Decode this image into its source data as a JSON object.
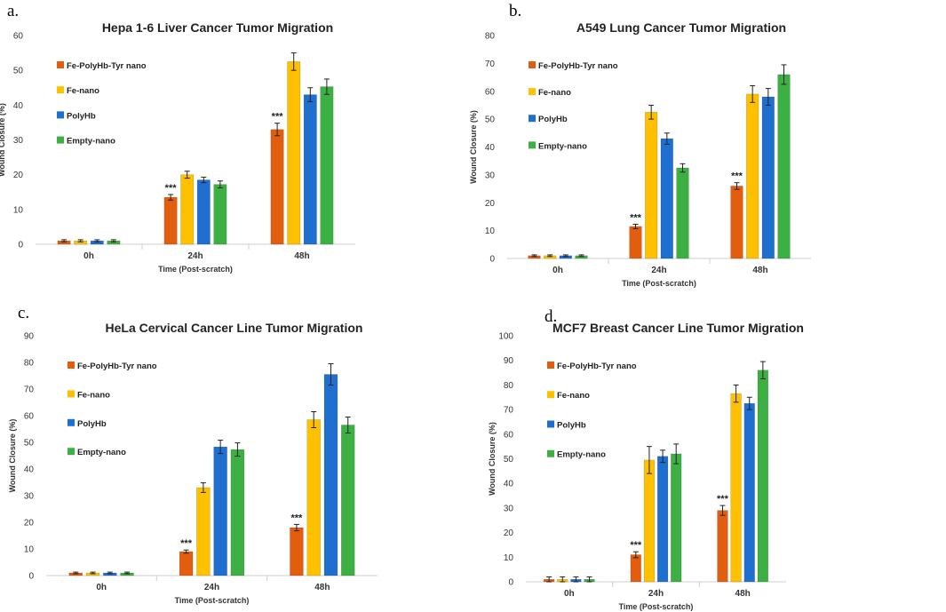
{
  "chart_data": [
    {
      "type": "bar",
      "panel_label": "a.",
      "title": "Hepa 1-6 Liver Cancer Tumor Migration",
      "xlabel": "Time (Post-scratch)",
      "ylabel": "Wound Closure (%)",
      "ylim": [
        0,
        60
      ],
      "ytick_step": 10,
      "categories": [
        "0h",
        "24h",
        "48h"
      ],
      "series": [
        {
          "name": "Fe-PolyHb-Tyr nano",
          "color": "#E35D0E",
          "values": [
            1,
            13.5,
            33
          ],
          "errors": [
            0.3,
            0.8,
            1.8
          ]
        },
        {
          "name": "Fe-nano",
          "color": "#FFC000",
          "values": [
            1,
            20,
            52.5
          ],
          "errors": [
            0.3,
            1,
            2.5
          ]
        },
        {
          "name": "PolyHb",
          "color": "#1E6FD0",
          "values": [
            1,
            18.5,
            43
          ],
          "errors": [
            0.3,
            0.8,
            2
          ]
        },
        {
          "name": "Empty-nano",
          "color": "#3CB043",
          "values": [
            1,
            17.2,
            45.3
          ],
          "errors": [
            0.3,
            1,
            2.2
          ]
        }
      ],
      "annotations": [
        {
          "text": "***",
          "category": "24h",
          "series": "Fe-PolyHb-Tyr nano"
        },
        {
          "text": "***",
          "category": "48h",
          "series": "Fe-PolyHb-Tyr nano"
        }
      ],
      "legend_position": "top-left"
    },
    {
      "type": "bar",
      "panel_label": "b.",
      "title": "A549 Lung Cancer Tumor Migration",
      "xlabel": "Time (Post-scratch)",
      "ylabel": "Wound Closure (%)",
      "ylim": [
        0,
        80
      ],
      "ytick_step": 10,
      "categories": [
        "0h",
        "24h",
        "48h"
      ],
      "series": [
        {
          "name": "Fe-PolyHb-Tyr nano",
          "color": "#E35D0E",
          "values": [
            1,
            11.5,
            26
          ],
          "errors": [
            0.3,
            0.8,
            1.2
          ]
        },
        {
          "name": "Fe-nano",
          "color": "#FFC000",
          "values": [
            1,
            52.5,
            59
          ],
          "errors": [
            0.3,
            2.5,
            3
          ]
        },
        {
          "name": "PolyHb",
          "color": "#1E6FD0",
          "values": [
            1,
            43,
            58
          ],
          "errors": [
            0.3,
            2,
            3
          ]
        },
        {
          "name": "Empty-nano",
          "color": "#3CB043",
          "values": [
            1,
            32.5,
            66
          ],
          "errors": [
            0.3,
            1.5,
            3.5
          ]
        }
      ],
      "annotations": [
        {
          "text": "***",
          "category": "24h",
          "series": "Fe-PolyHb-Tyr nano"
        },
        {
          "text": "***",
          "category": "48h",
          "series": "Fe-PolyHb-Tyr nano"
        }
      ],
      "legend_position": "top-left"
    },
    {
      "type": "bar",
      "panel_label": "c.",
      "title": "HeLa Cervical Cancer Line Tumor Migration",
      "xlabel": "Time (Post-scratch)",
      "ylabel": "Wound Closure (%)",
      "ylim": [
        0,
        90
      ],
      "ytick_step": 10,
      "categories": [
        "0h",
        "24h",
        "48h"
      ],
      "series": [
        {
          "name": "Fe-PolyHb-Tyr nano",
          "color": "#E35D0E",
          "values": [
            1,
            9,
            18
          ],
          "errors": [
            0.3,
            0.6,
            1.2
          ]
        },
        {
          "name": "Fe-nano",
          "color": "#FFC000",
          "values": [
            1,
            33,
            58.5
          ],
          "errors": [
            0.3,
            1.8,
            3
          ]
        },
        {
          "name": "PolyHb",
          "color": "#1E6FD0",
          "values": [
            1,
            48.3,
            75.5
          ],
          "errors": [
            0.3,
            2.5,
            4
          ]
        },
        {
          "name": "Empty-nano",
          "color": "#3CB043",
          "values": [
            1,
            47.3,
            56.5
          ],
          "errors": [
            0.3,
            2.5,
            3
          ]
        }
      ],
      "annotations": [
        {
          "text": "***",
          "category": "24h",
          "series": "Fe-PolyHb-Tyr nano"
        },
        {
          "text": "***",
          "category": "48h",
          "series": "Fe-PolyHb-Tyr nano"
        }
      ],
      "legend_position": "top-left"
    },
    {
      "type": "bar",
      "panel_label": "d.",
      "title": "MCF7 Breast Cancer Line Tumor Migration",
      "xlabel": "Time (Post-scratch)",
      "ylabel": "Wound Closure (%)",
      "ylim": [
        0,
        100
      ],
      "ytick_step": 10,
      "categories": [
        "0h",
        "24h",
        "48h"
      ],
      "series": [
        {
          "name": "Fe-PolyHb-Tyr nano",
          "color": "#E35D0E",
          "values": [
            1,
            11,
            29
          ],
          "errors": [
            1,
            1.2,
            2
          ]
        },
        {
          "name": "Fe-nano",
          "color": "#FFC000",
          "values": [
            1,
            49.5,
            76.5
          ],
          "errors": [
            1,
            5.5,
            3.5
          ]
        },
        {
          "name": "PolyHb",
          "color": "#1E6FD0",
          "values": [
            1,
            51,
            72.5
          ],
          "errors": [
            1,
            2.5,
            2.5
          ]
        },
        {
          "name": "Empty-nano",
          "color": "#3CB043",
          "values": [
            1,
            52,
            86
          ],
          "errors": [
            1,
            4,
            3.5
          ]
        }
      ],
      "annotations": [
        {
          "text": "***",
          "category": "24h",
          "series": "Fe-PolyHb-Tyr nano"
        },
        {
          "text": "***",
          "category": "48h",
          "series": "Fe-PolyHb-Tyr nano"
        }
      ],
      "legend_position": "top-left"
    }
  ]
}
